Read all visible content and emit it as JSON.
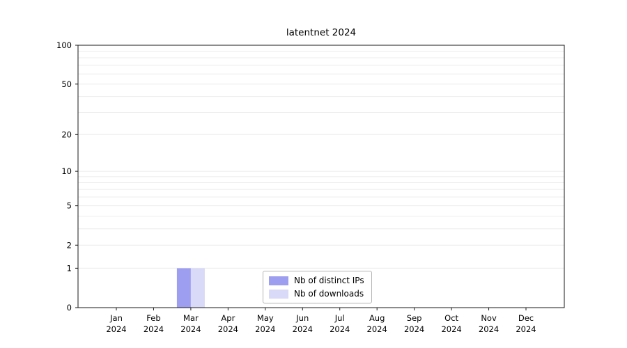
{
  "chart_data": {
    "type": "bar",
    "title": "latentnet 2024",
    "categories": [
      "Jan",
      "Feb",
      "Mar",
      "Apr",
      "May",
      "Jun",
      "Jul",
      "Aug",
      "Sep",
      "Oct",
      "Nov",
      "Dec"
    ],
    "year": "2024",
    "series": [
      {
        "name": "Nb of distinct IPs",
        "color": "#9e9ef0",
        "values": [
          0,
          0,
          1,
          0,
          0,
          0,
          0,
          0,
          0,
          0,
          0,
          0
        ]
      },
      {
        "name": "Nb of downloads",
        "color": "#d9d9f8",
        "values": [
          0,
          0,
          1,
          0,
          0,
          0,
          0,
          0,
          0,
          0,
          0,
          0
        ]
      }
    ],
    "yticks": [
      0,
      1,
      2,
      5,
      10,
      20,
      50,
      100
    ],
    "ylim": [
      0,
      100
    ],
    "yscale": "log1p",
    "grid": "horizontal",
    "grid_color": "#ececec",
    "axis_color": "#1a1a1a",
    "legend_position": "bottom-center"
  }
}
